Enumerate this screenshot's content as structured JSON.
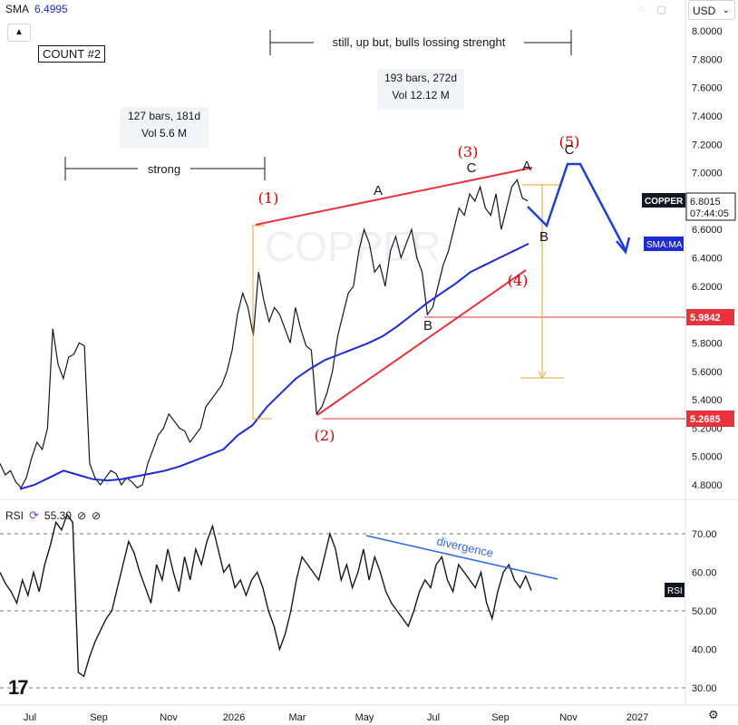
{
  "header": {
    "indicator_name": "SMA",
    "indicator_value": "6.4995",
    "collapse_icon": "chevron-up-icon",
    "count_label": "COUNT #2",
    "currency": "USD",
    "watermark": "COPPER"
  },
  "rsi_panel": {
    "name": "RSI",
    "value": "55.30",
    "icons": [
      "⊘",
      "⊘"
    ],
    "tag": "RSI"
  },
  "price_labels": {
    "symbol": "COPPER",
    "price": "6.8015",
    "countdown": "07:44:05",
    "sma_tag": "SMA:MA",
    "level_high": "5.9842",
    "level_low": "5.2685"
  },
  "notes": {
    "range1_line1": "127 bars, 181d",
    "range1_line2": "Vol 5.6 M",
    "range2_line1": "193 bars, 272d",
    "range2_line2": "Vol 12.12 M",
    "strong": "strong",
    "still_up": "still, up but, bulls lossing strenght",
    "divergence": "divergence"
  },
  "wave_labels": {
    "w1": "(1)",
    "w2": "(2)",
    "w3": "(3)",
    "w4": "(4)",
    "w5": "(5)",
    "a1": "A",
    "b1": "B",
    "c1": "C",
    "a2": "A",
    "b2": "B",
    "c2": "C"
  },
  "colors": {
    "price_line": "#131722",
    "sma": "#1c2bd6",
    "red": "#e8333d",
    "wave_label": "#d10000",
    "fib": "#e3a52a",
    "projection": "#1c3fd6",
    "divergence": "#2f6be0",
    "grid_dash": "#787b86"
  },
  "chart_data": [
    {
      "type": "line",
      "panel": "price",
      "y_axis_ticks": [
        "8.0000",
        "7.8000",
        "7.6000",
        "7.4000",
        "7.2000",
        "7.0000",
        "6.8000",
        "6.6000",
        "6.4000",
        "6.2000",
        "6.0000",
        "5.8000",
        "5.6000",
        "5.4000",
        "5.2000",
        "5.0000",
        "4.8000"
      ],
      "ylim": [
        4.72,
        8.05
      ],
      "x_axis_ticks": [
        "Jul",
        "Sep",
        "Nov",
        "2026",
        "Mar",
        "May",
        "Jul",
        "Sep",
        "Nov",
        "2027"
      ],
      "series": [
        {
          "values": [
            4.95,
            4.87,
            4.9,
            4.82,
            4.78,
            4.85,
            4.99,
            5.1,
            5.05,
            5.2,
            5.9,
            5.65,
            5.55,
            5.7,
            5.72,
            5.8,
            5.78,
            4.95,
            4.85,
            4.8,
            4.85,
            4.9,
            4.88,
            4.8,
            4.85,
            4.82,
            4.78,
            4.8,
            4.95,
            5.05,
            5.15,
            5.2,
            5.3,
            5.25,
            5.2,
            5.18,
            5.1,
            5.15,
            5.2,
            5.35,
            5.4,
            5.45,
            5.5,
            5.6,
            5.75,
            6.0,
            6.15,
            6.05,
            5.85,
            6.3,
            6.1,
            5.95,
            6.05,
            6.0,
            5.9,
            5.8,
            6.05,
            5.9,
            5.78,
            5.75,
            5.3,
            5.35,
            5.45,
            5.6,
            5.85,
            6.0,
            6.15,
            6.2,
            6.45,
            6.6,
            6.5,
            6.3,
            6.35,
            6.2,
            6.45,
            6.55,
            6.4,
            6.5,
            6.6,
            6.4,
            6.3,
            6.0,
            6.05,
            6.2,
            6.35,
            6.45,
            6.6,
            6.75,
            6.7,
            6.85,
            6.8,
            6.9,
            6.75,
            6.7,
            6.85,
            6.6,
            6.75,
            6.9,
            6.95,
            6.82,
            6.8015
          ]
        },
        {
          "name": "SMA:MA",
          "values": [
            4.77,
            4.8,
            4.85,
            4.9,
            4.87,
            4.84,
            4.83,
            4.84,
            4.86,
            4.88,
            4.9,
            4.93,
            4.97,
            5.01,
            5.05,
            5.15,
            5.22,
            5.35,
            5.45,
            5.55,
            5.62,
            5.68,
            5.72,
            5.76,
            5.8,
            5.85,
            5.92,
            6.0,
            6.08,
            6.15,
            6.22,
            6.3,
            6.35,
            6.4,
            6.45,
            6.4995
          ]
        }
      ],
      "annotations": [
        "(1)",
        "(2)",
        "(3)",
        "(4)",
        "(5)",
        "A",
        "B",
        "C",
        "A",
        "B",
        "C",
        "strong",
        "still, up but, bulls lossing strenght",
        "127 bars, 181d",
        "Vol 5.6 M",
        "193 bars, 272d",
        "Vol 12.12 M"
      ]
    },
    {
      "type": "line",
      "panel": "rsi",
      "y_axis_ticks": [
        "70.00",
        "60.00",
        "50.00",
        "40.00",
        "30.00"
      ],
      "ylim": [
        26,
        78
      ],
      "series": [
        {
          "name": "RSI",
          "values": [
            60,
            57,
            55,
            52,
            58,
            54,
            60,
            55,
            62,
            67,
            73,
            71,
            75,
            73,
            34,
            33,
            38,
            42,
            45,
            48,
            50,
            56,
            62,
            68,
            65,
            60,
            56,
            52,
            62,
            58,
            66,
            60,
            55,
            64,
            58,
            66,
            62,
            68,
            72,
            66,
            60,
            62,
            56,
            58,
            54,
            58,
            60,
            56,
            50,
            46,
            40,
            44,
            50,
            58,
            64,
            62,
            60,
            58,
            64,
            70,
            66,
            58,
            62,
            56,
            60,
            66,
            58,
            64,
            60,
            55,
            52,
            50,
            48,
            46,
            50,
            55,
            58,
            56,
            62,
            64,
            58,
            55,
            62,
            60,
            58,
            56,
            60,
            52,
            48,
            55,
            60,
            62,
            58,
            56,
            59,
            55.3
          ]
        }
      ],
      "annotations": [
        "divergence"
      ]
    }
  ]
}
